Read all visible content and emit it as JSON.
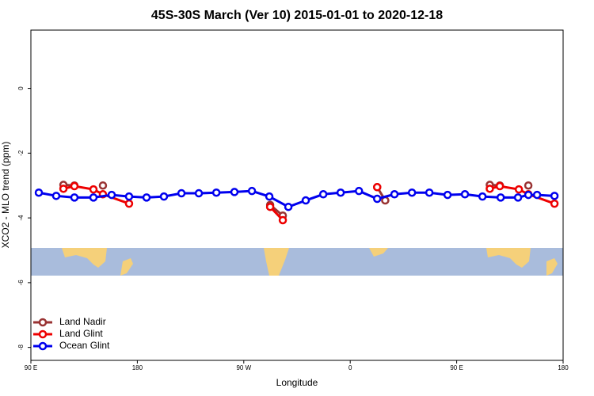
{
  "chart_data": {
    "type": "line",
    "title": "45S-30S March (Ver 10)   2015-01-01 to 2020-12-18",
    "xlabel": "Longitude",
    "ylabel": "XCO2 - MLO trend (ppm)",
    "xlim": [
      90,
      540
    ],
    "ylim": [
      -8.4,
      1.8
    ],
    "xticks": [
      {
        "value": 90,
        "label": "90 E"
      },
      180,
      {
        "value": 270,
        "label": "90 W"
      },
      {
        "value": 360,
        "label": "0"
      },
      {
        "value": 450,
        "label": "90 E"
      },
      {
        "value": 540,
        "label": "180"
      }
    ],
    "yticks": [
      0,
      -2,
      -4,
      -6,
      -8
    ],
    "legend": "bottom-left",
    "series": [
      {
        "name": "Land Nadir",
        "color": "#993333",
        "x": [
          117.5,
          126.8,
          null,
          150.9,
          null,
          292.3,
          303.0,
          null,
          382.8,
          389.6,
          null,
          478.0,
          486.5,
          null,
          510.6
        ],
        "values": [
          -2.98,
          -3.0,
          null,
          -3.0,
          null,
          -3.6,
          -3.93,
          null,
          -3.05,
          -3.46,
          null,
          -2.98,
          -3.0,
          null,
          -3.0
        ]
      },
      {
        "name": "Land Glint",
        "color": "#ee0000",
        "x": [
          117.5,
          126.8,
          142.9,
          150.9,
          173.0,
          null,
          292.3,
          303.0,
          null,
          382.8,
          null,
          478.0,
          486.5,
          502.6,
          510.6,
          532.7
        ],
        "values": [
          -3.1,
          -3.02,
          -3.12,
          -3.27,
          -3.56,
          null,
          -3.66,
          -4.07,
          null,
          -3.05,
          null,
          -3.1,
          -3.02,
          -3.12,
          -3.27,
          -3.56
        ]
      },
      {
        "name": "Ocean Glint",
        "color": "#0000ee",
        "x": [
          96.7,
          111.4,
          126.8,
          142.9,
          158.3,
          173.0,
          187.8,
          202.5,
          217.3,
          232.0,
          246.8,
          262.1,
          276.9,
          291.6,
          307.7,
          322.4,
          337.2,
          351.9,
          367.4,
          382.8,
          397.4,
          412.2,
          426.9,
          442.3,
          457.0,
          471.8,
          487.2,
          501.9,
          510.6,
          518.0,
          532.7
        ],
        "values": [
          -3.22,
          -3.32,
          -3.37,
          -3.37,
          -3.29,
          -3.34,
          -3.37,
          -3.34,
          -3.24,
          -3.24,
          -3.22,
          -3.2,
          -3.17,
          -3.34,
          -3.66,
          -3.46,
          -3.27,
          -3.22,
          -3.17,
          -3.41,
          -3.27,
          -3.22,
          -3.22,
          -3.29,
          -3.27,
          -3.34,
          -3.37,
          -3.37,
          -3.29,
          -3.29,
          -3.32
        ]
      }
    ]
  }
}
